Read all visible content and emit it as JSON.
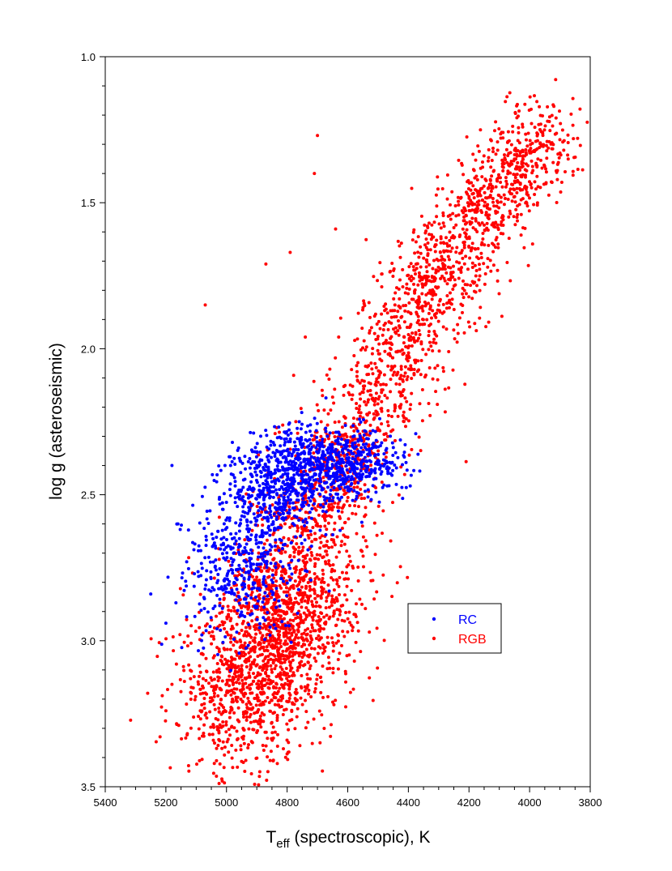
{
  "chart_data": {
    "type": "scatter",
    "xlabel": {
      "main": "T",
      "sub": "eff",
      "rest": " (spectroscopic), K"
    },
    "ylabel": "log g (asteroseismic)",
    "xlim": [
      5400,
      3800
    ],
    "ylim": [
      1.0,
      3.5
    ],
    "x_reversed": true,
    "y_reversed": true,
    "x_ticks": [
      5400,
      5200,
      5000,
      4800,
      4600,
      4400,
      4200,
      4000,
      3800
    ],
    "x_tick_labels": [
      "5400",
      "5200",
      "5000",
      "4800",
      "4600",
      "4400",
      "4200",
      "4000",
      "3800"
    ],
    "y_ticks": [
      1.0,
      1.5,
      2.0,
      2.5,
      3.0,
      3.5
    ],
    "y_tick_labels": [
      "1.0",
      "1.5",
      "2.0",
      "2.5",
      "3.0",
      "3.5"
    ],
    "grid": false,
    "legend_position": "lower-right",
    "series": [
      {
        "name": "RC",
        "color": "#0000ff",
        "n_points": 1500,
        "core": {
          "x": [
            4980,
            4960,
            4930,
            4900,
            4870,
            4840,
            4800,
            4760,
            4720,
            4680,
            4640,
            4600,
            4550,
            4500
          ],
          "y": [
            2.88,
            2.78,
            2.66,
            2.55,
            2.48,
            2.44,
            2.42,
            2.41,
            2.4,
            2.4,
            2.39,
            2.39,
            2.39,
            2.38
          ]
        },
        "sample_points": [
          [
            5250,
            2.84
          ],
          [
            5200,
            2.94
          ],
          [
            5180,
            2.4
          ],
          [
            5160,
            2.6
          ],
          [
            4960,
            2.34
          ],
          [
            4760,
            2.25
          ],
          [
            4620,
            2.31
          ],
          [
            4480,
            2.36
          ],
          [
            4470,
            2.47
          ]
        ]
      },
      {
        "name": "RGB",
        "color": "#ff0000",
        "n_points": 3600,
        "main_branch": {
          "x": [
            4850,
            4750,
            4650,
            4550,
            4450,
            4350,
            4250,
            4150,
            4050,
            3950
          ],
          "y": [
            2.9,
            2.65,
            2.45,
            2.25,
            2.05,
            1.85,
            1.68,
            1.52,
            1.38,
            1.24
          ]
        },
        "lower_blob": {
          "x": [
            5000,
            4900,
            4800,
            4700
          ],
          "y": [
            3.25,
            3.1,
            2.95,
            2.8
          ]
        },
        "sample_points": [
          [
            4700,
            1.27
          ],
          [
            4710,
            1.4
          ],
          [
            4640,
            1.59
          ],
          [
            4870,
            1.71
          ],
          [
            5070,
            1.85
          ],
          [
            4790,
            1.67
          ],
          [
            3900,
            1.33
          ],
          [
            3920,
            1.17
          ],
          [
            3995,
            1.18
          ],
          [
            5260,
            3.18
          ],
          [
            5200,
            3.24
          ],
          [
            4630,
            1.96
          ],
          [
            4740,
            1.96
          ]
        ]
      }
    ]
  }
}
